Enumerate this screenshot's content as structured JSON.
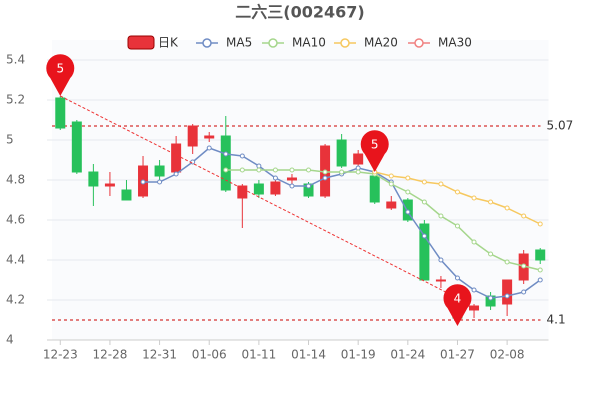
{
  "chart_data": {
    "type": "candlestick",
    "title": "二六三(002467)",
    "candle_name": "日K",
    "up_color": "#e8333a",
    "down_color": "#27c15b",
    "categories": [
      "12-23",
      null,
      null,
      "12-28",
      null,
      null,
      "12-31",
      null,
      null,
      "01-06",
      null,
      null,
      "01-11",
      null,
      null,
      "01-14",
      null,
      null,
      "01-19",
      null,
      null,
      "01-24",
      null,
      null,
      "01-27",
      null,
      null,
      "02-08",
      null,
      null
    ],
    "open": [
      5.21,
      5.09,
      4.84,
      4.77,
      4.75,
      4.72,
      4.87,
      4.84,
      4.97,
      5.01,
      5.02,
      4.71,
      4.78,
      4.73,
      4.8,
      4.78,
      4.72,
      5.0,
      4.88,
      4.82,
      4.66,
      4.7,
      4.58,
      4.3,
      4.2,
      4.15,
      4.22,
      4.18,
      4.3,
      4.45
    ],
    "high": [
      5.22,
      5.1,
      4.88,
      4.84,
      4.8,
      4.92,
      4.9,
      5.02,
      5.08,
      5.04,
      5.12,
      4.78,
      4.8,
      4.8,
      4.83,
      4.79,
      4.98,
      5.03,
      4.95,
      4.84,
      4.72,
      4.71,
      4.6,
      4.32,
      4.21,
      4.18,
      4.24,
      4.3,
      4.45,
      4.46
    ],
    "low": [
      5.05,
      4.83,
      4.67,
      4.72,
      4.7,
      4.71,
      4.78,
      4.83,
      4.93,
      4.99,
      4.74,
      4.56,
      4.71,
      4.72,
      4.76,
      4.71,
      4.71,
      4.86,
      4.85,
      4.68,
      4.65,
      4.59,
      4.3,
      4.26,
      4.09,
      4.11,
      4.15,
      4.12,
      4.28,
      4.38
    ],
    "close": [
      5.06,
      4.84,
      4.77,
      4.78,
      4.7,
      4.87,
      4.82,
      4.98,
      5.07,
      5.02,
      4.75,
      4.77,
      4.73,
      4.79,
      4.81,
      4.72,
      4.97,
      4.87,
      4.93,
      4.69,
      4.69,
      4.6,
      4.3,
      4.3,
      4.11,
      4.17,
      4.17,
      4.3,
      4.43,
      4.4
    ],
    "series": [
      {
        "name": "MA5",
        "color": "#6f8cc4",
        "values": [
          null,
          null,
          null,
          null,
          null,
          4.79,
          4.79,
          4.83,
          4.89,
          4.96,
          4.93,
          4.92,
          4.87,
          4.81,
          4.77,
          4.77,
          4.81,
          4.83,
          4.86,
          4.84,
          4.79,
          4.64,
          4.52,
          4.4,
          4.31,
          4.25,
          4.21,
          4.22,
          4.24,
          4.3
        ]
      },
      {
        "name": "MA10",
        "color": "#a5d68c",
        "values": [
          null,
          null,
          null,
          null,
          null,
          null,
          null,
          null,
          null,
          null,
          4.85,
          4.85,
          4.85,
          4.85,
          4.85,
          4.85,
          4.84,
          4.84,
          4.84,
          4.83,
          4.78,
          4.74,
          4.69,
          4.62,
          4.57,
          4.49,
          4.43,
          4.39,
          4.37,
          4.35
        ]
      },
      {
        "name": "MA20",
        "color": "#f6c85f",
        "values": [
          null,
          null,
          null,
          null,
          null,
          null,
          null,
          null,
          null,
          null,
          null,
          null,
          null,
          null,
          null,
          null,
          null,
          null,
          null,
          4.84,
          4.82,
          4.81,
          4.79,
          4.78,
          4.74,
          4.71,
          4.69,
          4.66,
          4.62,
          4.58
        ]
      },
      {
        "name": "MA30",
        "color": "#f08080",
        "values": [
          null,
          null,
          null,
          null,
          null,
          null,
          null,
          null,
          null,
          null,
          null,
          null,
          null,
          null,
          null,
          null,
          null,
          null,
          null,
          null,
          null,
          null,
          null,
          null,
          null,
          null,
          null,
          null,
          null,
          null
        ]
      }
    ],
    "ylim": [
      4,
      5.5
    ],
    "yticks": [
      4,
      4.2,
      4.4,
      4.6,
      4.8,
      5,
      5.2,
      5.4
    ],
    "grid": true,
    "hlines": [
      5.07,
      4.1
    ],
    "markers": [
      {
        "label": "5",
        "index": 0
      },
      {
        "label": "5",
        "index": 19
      },
      {
        "label": "4",
        "index": 24
      }
    ]
  }
}
